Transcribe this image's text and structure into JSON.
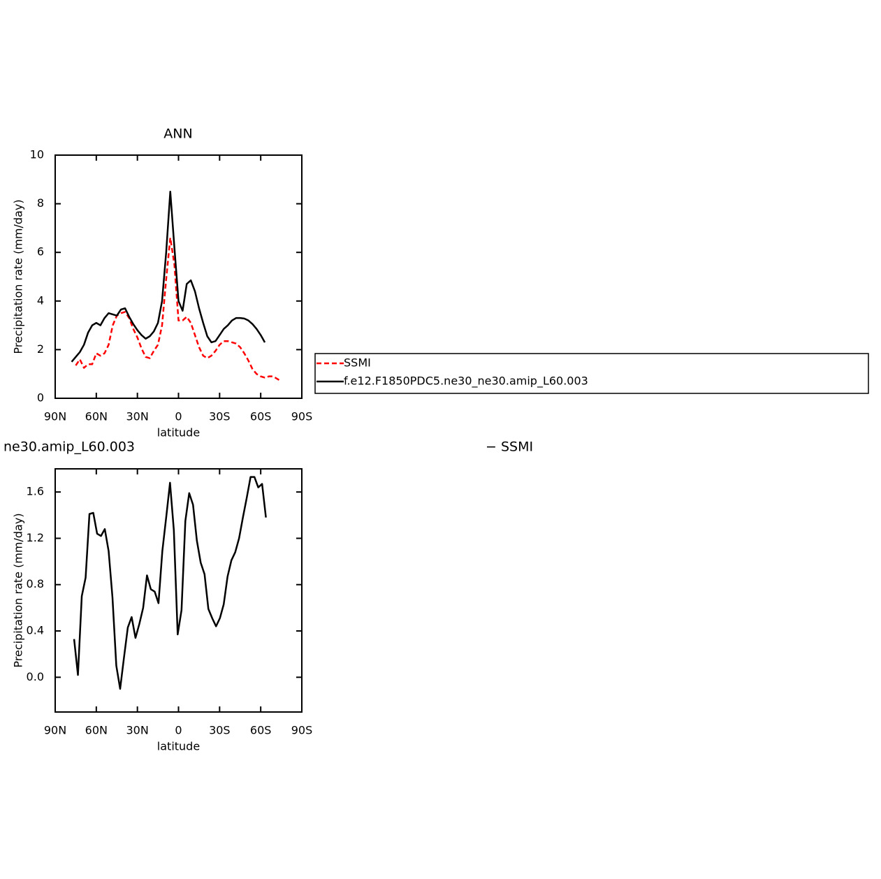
{
  "chart_data": [
    {
      "type": "line",
      "title": "ANN",
      "xlabel": "latitude",
      "ylabel": "Precipitation rate (mm/day)",
      "x": [
        78,
        75,
        72,
        69,
        66,
        63,
        60,
        57,
        54,
        51,
        48,
        45,
        42,
        39,
        36,
        33,
        30,
        27,
        24,
        21,
        18,
        15,
        12,
        9,
        6,
        3,
        0,
        -3,
        -6,
        -9,
        -12,
        -15,
        -18,
        -21,
        -24,
        -27,
        -30,
        -33,
        -36,
        -39,
        -42,
        -45,
        -48,
        -51,
        -54,
        -57,
        -60,
        -63,
        -66,
        -69,
        -72,
        -75
      ],
      "series": [
        {
          "name": "SSMI",
          "color": "#ff0000",
          "dashed": true,
          "values": [
            null,
            1.35,
            1.6,
            1.25,
            1.4,
            1.4,
            1.85,
            1.75,
            1.85,
            2.2,
            3.0,
            3.4,
            3.5,
            3.55,
            3.3,
            2.85,
            2.5,
            2.05,
            1.7,
            1.65,
            1.95,
            2.2,
            3.0,
            4.9,
            6.6,
            5.5,
            3.2,
            3.2,
            3.35,
            3.1,
            2.6,
            2.1,
            1.75,
            1.65,
            1.75,
            1.95,
            2.2,
            2.35,
            2.35,
            2.3,
            2.25,
            2.1,
            1.85,
            1.55,
            1.2,
            1.0,
            0.9,
            0.85,
            0.9,
            0.9,
            0.8,
            0.7
          ]
        },
        {
          "name": "f.e12.F1850PDC5.ne30_ne30.amip_L60.003",
          "color": "#000000",
          "dashed": false,
          "values": [
            1.5,
            1.7,
            1.9,
            2.2,
            2.7,
            3.0,
            3.1,
            3.0,
            3.3,
            3.5,
            3.45,
            3.4,
            3.65,
            3.7,
            3.35,
            3.05,
            2.8,
            2.6,
            2.45,
            2.55,
            2.75,
            3.1,
            4.0,
            6.0,
            8.5,
            6.2,
            4.0,
            3.6,
            4.7,
            4.85,
            4.4,
            3.7,
            3.1,
            2.55,
            2.3,
            2.35,
            2.6,
            2.85,
            3.0,
            3.2,
            3.3,
            3.3,
            3.28,
            3.2,
            3.05,
            2.85,
            2.6,
            2.3,
            null,
            null,
            null,
            null
          ]
        }
      ],
      "xlim": [
        90,
        -90
      ],
      "xticks": [
        {
          "value": 90,
          "label": "90N"
        },
        {
          "value": 60,
          "label": "60N"
        },
        {
          "value": 30,
          "label": "30N"
        },
        0,
        {
          "value": -30,
          "label": "30S"
        },
        {
          "value": -60,
          "label": "60S"
        },
        {
          "value": -90,
          "label": "90S"
        }
      ],
      "ylim": [
        0,
        10
      ],
      "yticks": [
        0,
        2,
        4,
        6,
        8,
        10
      ],
      "legend": "right"
    },
    {
      "type": "line",
      "title": "ne30.amip_L60.003",
      "subtitle": "− SSMI",
      "xlabel": "latitude",
      "ylabel": "Precipitation rate (mm/day)",
      "x": [
        76.2,
        73.4,
        70.6,
        67.8,
        65,
        62.2,
        59.4,
        56.6,
        53.8,
        51,
        48.2,
        45.4,
        42.6,
        39.8,
        37,
        34.2,
        31.4,
        28.6,
        25.8,
        23,
        20.2,
        17.4,
        14.6,
        11.8,
        9,
        6.2,
        3.4,
        0.6,
        -2.2,
        -5,
        -7.8,
        -10.6,
        -13.4,
        -16.2,
        -19,
        -21.8,
        -24.6,
        -27.4,
        -30.2,
        -33,
        -35.8,
        -38.6,
        -41.4,
        -44.2,
        -47,
        -49.8,
        -52.6,
        -55.4,
        -58.2,
        -61,
        -63.8
      ],
      "series": [
        {
          "color": "#000000",
          "dashed": false,
          "values": [
            0.33,
            0.02,
            0.7,
            0.86,
            1.41,
            1.42,
            1.24,
            1.22,
            1.28,
            1.09,
            0.69,
            0.1,
            -0.1,
            0.17,
            0.43,
            0.52,
            0.34,
            0.46,
            0.6,
            0.88,
            0.76,
            0.74,
            0.64,
            1.09,
            1.38,
            1.68,
            1.27,
            0.37,
            0.58,
            1.35,
            1.59,
            1.49,
            1.18,
            0.99,
            0.89,
            0.59,
            0.51,
            0.44,
            0.51,
            0.63,
            0.87,
            1.01,
            1.08,
            1.2,
            1.38,
            1.55,
            1.73,
            1.73,
            1.64,
            1.67,
            1.38
          ]
        }
      ],
      "xlim": [
        90,
        -90
      ],
      "xticks": [
        {
          "value": 90,
          "label": "90N"
        },
        {
          "value": 60,
          "label": "60N"
        },
        {
          "value": 30,
          "label": "30N"
        },
        0,
        {
          "value": -30,
          "label": "30S"
        },
        {
          "value": -60,
          "label": "60S"
        },
        {
          "value": -90,
          "label": "90S"
        }
      ],
      "ylim": [
        -0.3,
        1.8
      ],
      "yticks": [
        {
          "value": 0,
          "label": "0.0"
        },
        0.4,
        0.8,
        1.2,
        1.6
      ]
    }
  ]
}
